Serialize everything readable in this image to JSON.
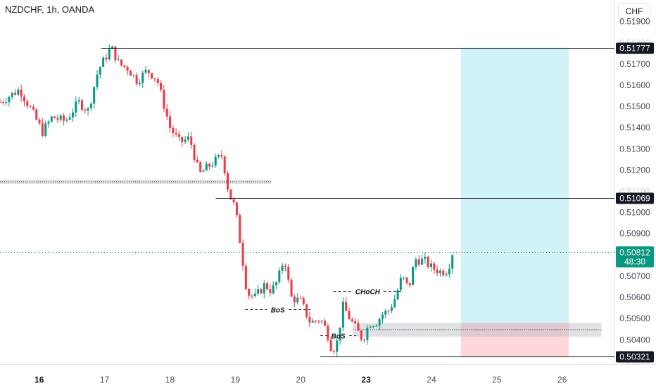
{
  "header": {
    "symbol": "NZDCHF, 1h, OANDA",
    "currency_button": "CHF"
  },
  "colors": {
    "up": "#089981",
    "down": "#f23645",
    "target_zone": "#b2ebf2",
    "stop_zone": "#ffcdd2",
    "demand_zone": "#b2b5be",
    "current_price_bg": "#089981",
    "level_line": "#131722",
    "axis_text": "#4a4f5c"
  },
  "chart_data": {
    "type": "candlestick",
    "title": "NZDCHF, 1h, OANDA",
    "x_axis": {
      "ticks": [
        {
          "label": "16",
          "x": 0.4,
          "bold": true
        },
        {
          "label": "17",
          "x": 1.4,
          "bold": false
        },
        {
          "label": "18",
          "x": 2.4,
          "bold": false
        },
        {
          "label": "19",
          "x": 3.4,
          "bold": false
        },
        {
          "label": "20",
          "x": 4.4,
          "bold": false
        },
        {
          "label": "23",
          "x": 5.4,
          "bold": true
        },
        {
          "label": "24",
          "x": 6.4,
          "bold": false
        },
        {
          "label": "25",
          "x": 7.4,
          "bold": false
        },
        {
          "label": "26",
          "x": 8.4,
          "bold": false
        }
      ],
      "range": [
        -0.2,
        9.2
      ]
    },
    "y_axis": {
      "range": [
        0.50285,
        0.51915
      ],
      "ticks": [
        "0.51900",
        "0.51800",
        "0.51700",
        "0.51600",
        "0.51500",
        "0.51400",
        "0.51300",
        "0.51200",
        "0.51100",
        "0.51000",
        "0.50900",
        "0.50800",
        "0.50700",
        "0.50600",
        "0.50500",
        "0.50400",
        "0.50300"
      ]
    },
    "close_path": [
      [
        -0.2,
        0.5152
      ],
      [
        0.1,
        0.5158
      ],
      [
        0.3,
        0.5147
      ],
      [
        0.45,
        0.5138
      ],
      [
        0.6,
        0.5145
      ],
      [
        0.8,
        0.5143
      ],
      [
        1.0,
        0.5152
      ],
      [
        1.15,
        0.5148
      ],
      [
        1.3,
        0.5167
      ],
      [
        1.45,
        0.5175
      ],
      [
        1.5,
        0.5178
      ],
      [
        1.62,
        0.517
      ],
      [
        1.75,
        0.5168
      ],
      [
        1.9,
        0.5162
      ],
      [
        2.05,
        0.5167
      ],
      [
        2.2,
        0.5163
      ],
      [
        2.4,
        0.514
      ],
      [
        2.55,
        0.5133
      ],
      [
        2.7,
        0.5135
      ],
      [
        2.85,
        0.5118
      ],
      [
        3.0,
        0.5122
      ],
      [
        3.2,
        0.5127
      ],
      [
        3.25,
        0.5118
      ],
      [
        3.3,
        0.5109
      ],
      [
        3.4,
        0.5102
      ],
      [
        3.5,
        0.508
      ],
      [
        3.58,
        0.5062
      ],
      [
        3.7,
        0.506
      ],
      [
        3.85,
        0.5066
      ],
      [
        3.95,
        0.5063
      ],
      [
        4.05,
        0.5068
      ],
      [
        4.15,
        0.5079
      ],
      [
        4.25,
        0.506
      ],
      [
        4.4,
        0.5058
      ],
      [
        4.55,
        0.5048
      ],
      [
        4.7,
        0.505
      ],
      [
        4.8,
        0.5044
      ],
      [
        4.88,
        0.5035
      ],
      [
        4.95,
        0.5038
      ],
      [
        5.05,
        0.5056
      ],
      [
        5.15,
        0.505
      ],
      [
        5.25,
        0.5045
      ],
      [
        5.35,
        0.504
      ],
      [
        5.45,
        0.5048
      ],
      [
        5.55,
        0.5048
      ],
      [
        5.65,
        0.5052
      ],
      [
        5.75,
        0.5054
      ],
      [
        5.85,
        0.506
      ],
      [
        5.95,
        0.507
      ],
      [
        6.05,
        0.5064
      ],
      [
        6.15,
        0.5078
      ],
      [
        6.3,
        0.5077
      ],
      [
        6.4,
        0.5074
      ],
      [
        6.55,
        0.5072
      ],
      [
        6.65,
        0.5073
      ],
      [
        6.72,
        0.5081
      ]
    ],
    "last_price": "0.50812",
    "countdown": "48:30",
    "levels": [
      {
        "label": "0.51777",
        "price": 0.51777,
        "x_start": 1.35
      },
      {
        "label": "0.51069",
        "price": 0.51069,
        "x_start": 3.1
      },
      {
        "label": "0.50321",
        "price": 0.50321,
        "x_start": 4.7
      }
    ],
    "zones": [
      {
        "name": "supply-flip-zone",
        "x": [
          -0.2,
          3.95
        ],
        "y": [
          0.51135,
          0.51155
        ]
      },
      {
        "name": "demand-zone",
        "x": [
          5.2,
          9.0
        ],
        "y": [
          0.50415,
          0.5048
        ]
      }
    ],
    "position": {
      "type": "long",
      "x": [
        6.85,
        8.5
      ],
      "entry": 0.5048,
      "target": 0.51777,
      "stop": 0.50321
    },
    "annotations": [
      {
        "text": "CHoCH",
        "x": [
          4.9,
          5.95
        ],
        "y": 0.5063
      },
      {
        "text": "BoS",
        "x": [
          3.55,
          4.55
        ],
        "y": 0.50543
      },
      {
        "text": "BoS",
        "x": [
          4.7,
          5.25
        ],
        "y": 0.50422
      }
    ]
  }
}
